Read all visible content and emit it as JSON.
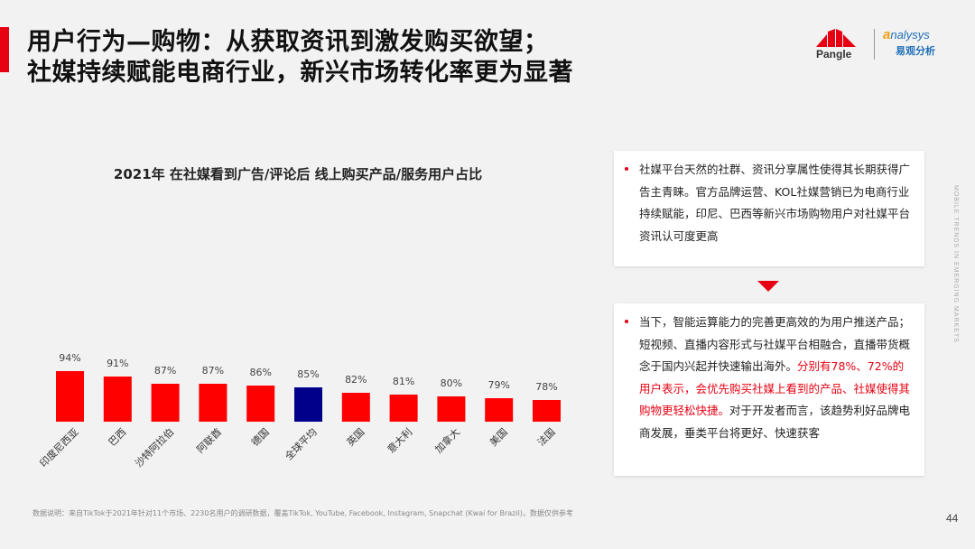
{
  "title": {
    "line1": "用户行为—购物：从获取资讯到激发购买欲望；",
    "line2": "社媒持续赋能电商行业，新兴市场转化率更为显著"
  },
  "logos": {
    "pangle": "Pangle",
    "analysys_a": "a",
    "analysys_rest": "nalysys",
    "analysys_cn": "易观分析"
  },
  "side_text": "MOBILE TRENDS IN EMERGING MARKETS",
  "chart_data": {
    "type": "bar",
    "title": "2021年 在社媒看到广告/评论后 线上购买产品/服务用户占比",
    "categories": [
      "印度尼西亚",
      "巴西",
      "沙特阿拉伯",
      "阿联酋",
      "德国",
      "全球平均",
      "英国",
      "意大利",
      "加拿大",
      "美国",
      "法国"
    ],
    "values": [
      94,
      91,
      87,
      87,
      86,
      85,
      82,
      81,
      80,
      79,
      78
    ],
    "labels": [
      "94%",
      "91%",
      "87%",
      "87%",
      "86%",
      "85%",
      "82%",
      "81%",
      "80%",
      "79%",
      "78%"
    ],
    "highlight_index": 5,
    "colors": {
      "bar": "#ff0000",
      "highlight": "#00008b"
    },
    "ylim": [
      0,
      100
    ],
    "xlabel": "",
    "ylabel": "",
    "grid": false
  },
  "box1": {
    "text": "社媒平台天然的社群、资讯分享属性使得其长期获得广告主青睐。官方品牌运营、KOL社媒营销已为电商行业持续赋能，印尼、巴西等新兴市场购物用户对社媒平台资讯认可度更高"
  },
  "box2": {
    "text_a": "当下，智能运算能力的完善更高效的为用户推送产品；短视频、直播内容形式与社媒平台相融合，直播带货概念于国内兴起并快速输出海外。",
    "text_red": "分别有78%、72%的用户表示，会优先购买社媒上看到的产品、社媒使得其购物更轻松快捷。",
    "text_b": "对于开发者而言，该趋势利好品牌电商发展，垂类平台将更好、快速获客"
  },
  "footnote": "数据说明：来自TikTok于2021年针对11个市场、2230名用户的调研数据，覆盖TikTok, YouTube, Facebook, Instagram, Snapchat (Kwai for Brazil)，数据仅供参考",
  "page_number": "44",
  "colors": {
    "accent": "#e60012",
    "background": "#f2f2f2"
  }
}
